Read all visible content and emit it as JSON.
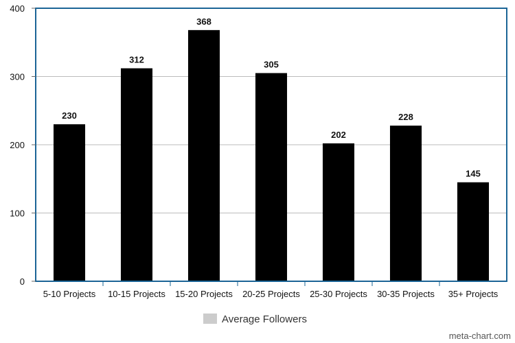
{
  "chart_data": {
    "type": "bar",
    "categories": [
      "5-10 Projects",
      "10-15 Projects",
      "15-20 Projects",
      "20-25 Projects",
      "25-30 Projects",
      "30-35 Projects",
      "35+ Projects"
    ],
    "series": [
      {
        "name": "Average Followers",
        "values": [
          230,
          312,
          368,
          305,
          202,
          228,
          145
        ]
      }
    ],
    "data_labels": [
      "230",
      "312",
      "368",
      "305",
      "202",
      "228",
      "145"
    ],
    "ylim": [
      0,
      400
    ],
    "yticks": [
      0,
      100,
      200,
      300,
      400
    ],
    "ytick_labels": [
      "0",
      "100",
      "200",
      "300",
      "400"
    ],
    "grid": true,
    "legend_position": "bottom-center",
    "title": "",
    "xlabel": "",
    "ylabel": ""
  },
  "colors": {
    "bar": "#000000",
    "frame": "#1a6496",
    "grid": "#bbbbbb",
    "legend_swatch": "#cccccc"
  },
  "watermark": "meta-chart.com"
}
